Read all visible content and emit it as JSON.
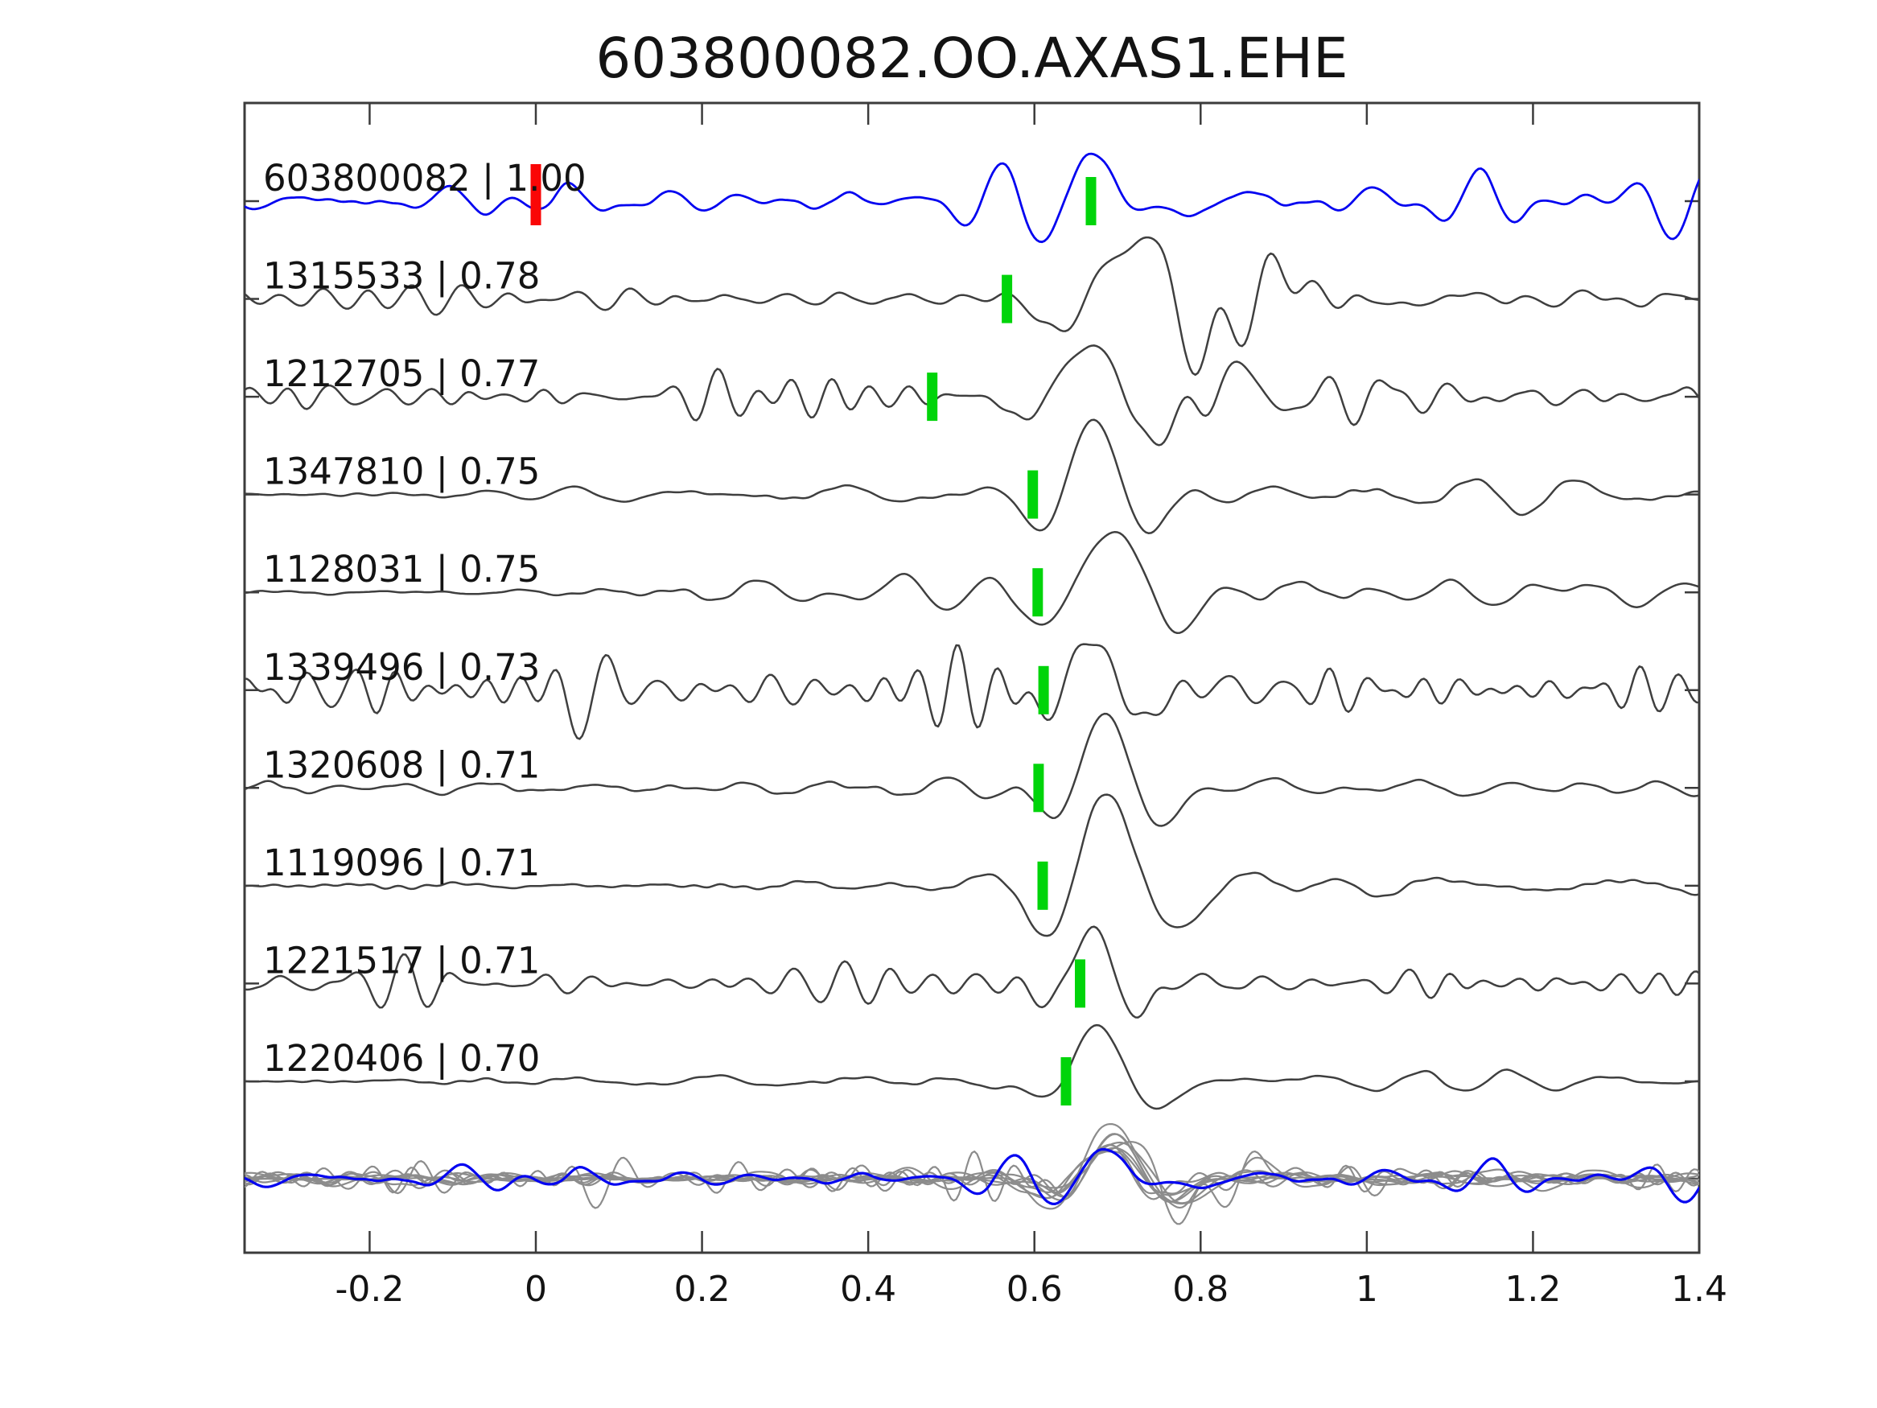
{
  "title": "603800082.OO.AXAS1.EHE",
  "colors": {
    "background": "#ffffff",
    "template_trace": "#0404f0",
    "detection_trace": "#3f3f3f",
    "overlay_gray": "#8c8c8c",
    "pick_green": "#00d40a",
    "pick_red": "#fa0606",
    "axis": "#3b3b3b",
    "text": "#131313"
  },
  "axis": {
    "xmin": -0.3505,
    "xmax": 1.4,
    "ticks": [
      {
        "value": -0.2,
        "label": "-0.2"
      },
      {
        "value": 0,
        "label": "0"
      },
      {
        "value": 0.2,
        "label": "0.2"
      },
      {
        "value": 0.4,
        "label": "0.4"
      },
      {
        "value": 0.6,
        "label": "0.6"
      },
      {
        "value": 0.8,
        "label": "0.8"
      },
      {
        "value": 1,
        "label": "1"
      },
      {
        "value": 1.2,
        "label": "1.2"
      },
      {
        "value": 1.4,
        "label": "1.4"
      }
    ]
  },
  "chart_data": {
    "type": "line",
    "title": "603800082.OO.AXAS1.EHE",
    "x_range": [
      -0.35,
      1.4
    ],
    "x_ticks": [
      "-0.2",
      "0",
      "0.2",
      "0.4",
      "0.6",
      "0.8",
      "1",
      "1.2",
      "1.4"
    ],
    "legend": "none",
    "grid": false,
    "traces": [
      {
        "id": "603800082",
        "correlation": "1.00",
        "label": "603800082 | 1.00",
        "role": "template",
        "color_key": "template_trace",
        "picks": [
          {
            "time": 0.0,
            "color_key": "pick_red",
            "tall": true
          },
          {
            "time": 0.668,
            "color_key": "pick_green",
            "tall": false
          }
        ],
        "synth": {
          "seed": 101,
          "noise": {
            "amp": 24,
            "f": [
              6,
              16
            ]
          },
          "pre": {
            "until": 0.0,
            "factor": 0.5,
            "width": 0.05
          },
          "event": {
            "t": 0.665,
            "amp": 60,
            "f": 6.5,
            "sigL": 0.04,
            "sigR": 0.07,
            "phi": -0.4
          },
          "coda": {
            "amp": 24,
            "tau": 0.55,
            "f": [
              5,
              13
            ]
          }
        }
      },
      {
        "id": "1315533",
        "correlation": "0.78",
        "label": "1315533 | 0.78",
        "role": "detection",
        "color_key": "detection_trace",
        "picks": [
          {
            "time": 0.567,
            "color_key": "pick_green",
            "tall": false
          }
        ],
        "synth": {
          "seed": 202,
          "noise": {
            "amp": 18,
            "f": [
              9,
              20
            ]
          },
          "event": {
            "t": 0.7,
            "amp": 78,
            "f": 5,
            "sigL": 0.06,
            "sigR": 0.15,
            "phi": -0.5
          },
          "coda": {
            "amp": 20,
            "tau": 0.6,
            "f": [
              6,
              14
            ]
          }
        }
      },
      {
        "id": "1212705",
        "correlation": "0.77",
        "label": "1212705 | 0.77",
        "role": "detection",
        "color_key": "detection_trace",
        "picks": [
          {
            "time": 0.477,
            "color_key": "pick_green",
            "tall": false
          }
        ],
        "synth": {
          "seed": 303,
          "noise": {
            "amp": 21,
            "f": [
              11,
              24
            ]
          },
          "event": {
            "t": 0.655,
            "amp": 68,
            "f": 5.5,
            "sigL": 0.05,
            "sigR": 0.13,
            "phi": -0.3
          },
          "coda": {
            "amp": 22,
            "tau": 0.7,
            "f": [
              8,
              18
            ]
          }
        }
      },
      {
        "id": "1347810",
        "correlation": "0.75",
        "label": "1347810 | 0.75",
        "role": "detection",
        "color_key": "detection_trace",
        "picks": [
          {
            "time": 0.598,
            "color_key": "pick_green",
            "tall": false
          }
        ],
        "synth": {
          "seed": 404,
          "noise": {
            "amp": 13,
            "f": [
              5,
              11
            ]
          },
          "pre": {
            "until": 0.0,
            "factor": 0.14,
            "width": 0.05
          },
          "event": {
            "t": 0.655,
            "amp": 80,
            "f": 6,
            "sigL": 0.045,
            "sigR": 0.085,
            "phi": -0.55
          },
          "coda": {
            "amp": 15,
            "tau": 0.5,
            "f": [
              4,
              9
            ]
          }
        }
      },
      {
        "id": "1128031",
        "correlation": "0.75",
        "label": "1128031 | 0.75",
        "role": "detection",
        "color_key": "detection_trace",
        "picks": [
          {
            "time": 0.604,
            "color_key": "pick_green",
            "tall": false
          }
        ],
        "synth": {
          "seed": 505,
          "noise": {
            "amp": 15,
            "f": [
              5,
              11
            ]
          },
          "pre": {
            "until": 0.0,
            "factor": 0.12,
            "width": 0.05
          },
          "event": {
            "t": 0.675,
            "amp": 84,
            "f": 5.5,
            "sigL": 0.05,
            "sigR": 0.09,
            "phi": -0.6
          },
          "coda": {
            "amp": 17,
            "tau": 0.55,
            "f": [
              4,
              9
            ]
          }
        }
      },
      {
        "id": "1339496",
        "correlation": "0.73",
        "label": "1339496 | 0.73",
        "role": "detection",
        "color_key": "detection_trace",
        "picks": [
          {
            "time": 0.611,
            "color_key": "pick_green",
            "tall": false
          }
        ],
        "synth": {
          "seed": 606,
          "noise": {
            "amp": 23,
            "f": [
              13,
              28
            ]
          },
          "event": {
            "t": 0.66,
            "amp": 64,
            "f": 7,
            "sigL": 0.04,
            "sigR": 0.07,
            "phi": -0.4
          },
          "event2": {
            "t": 0.055,
            "amp": 52,
            "f": 13,
            "sigL": 0.022,
            "sigR": 0.03,
            "phi": -2.8
          },
          "coda": {
            "amp": 20,
            "tau": 0.6,
            "f": [
              10,
              22
            ]
          }
        }
      },
      {
        "id": "1320608",
        "correlation": "0.71",
        "label": "1320608 | 0.71",
        "role": "detection",
        "color_key": "detection_trace",
        "picks": [
          {
            "time": 0.605,
            "color_key": "pick_green",
            "tall": false
          }
        ],
        "synth": {
          "seed": 707,
          "noise": {
            "amp": 12,
            "f": [
              6,
              13
            ]
          },
          "pre": {
            "until": 0.3,
            "factor": 0.5,
            "width": 0.18
          },
          "event": {
            "t": 0.668,
            "amp": 82,
            "f": 6,
            "sigL": 0.045,
            "sigR": 0.085,
            "phi": -0.55
          },
          "coda": {
            "amp": 14,
            "tau": 0.5,
            "f": [
              4,
              10
            ]
          }
        }
      },
      {
        "id": "1119096",
        "correlation": "0.71",
        "label": "1119096 | 0.71",
        "role": "detection",
        "color_key": "detection_trace",
        "picks": [
          {
            "time": 0.61,
            "color_key": "pick_green",
            "tall": false
          }
        ],
        "synth": {
          "seed": 808,
          "noise": {
            "amp": 14,
            "f": [
              5,
              11
            ]
          },
          "pre": {
            "until": 0.0,
            "factor": 0.13,
            "width": 0.05
          },
          "event": {
            "t": 0.675,
            "amp": 86,
            "f": 5,
            "sigL": 0.05,
            "sigR": 0.095,
            "phi": -0.65
          },
          "coda": {
            "amp": 16,
            "tau": 0.55,
            "f": [
              4,
              9
            ]
          }
        }
      },
      {
        "id": "1221517",
        "correlation": "0.71",
        "label": "1221517 | 0.71",
        "role": "detection",
        "color_key": "detection_trace",
        "picks": [
          {
            "time": 0.655,
            "color_key": "pick_green",
            "tall": false
          }
        ],
        "synth": {
          "seed": 909,
          "noise": {
            "amp": 15,
            "f": [
              12,
              24
            ]
          },
          "event": {
            "t": 0.66,
            "amp": 68,
            "f": 7.5,
            "sigL": 0.035,
            "sigR": 0.06,
            "phi": -0.35
          },
          "coda": {
            "amp": 15,
            "tau": 0.55,
            "f": [
              9,
              18
            ]
          }
        }
      },
      {
        "id": "1220406",
        "correlation": "0.70",
        "label": "1220406 | 0.70",
        "role": "detection",
        "color_key": "detection_trace",
        "picks": [
          {
            "time": 0.638,
            "color_key": "pick_green",
            "tall": false
          }
        ],
        "synth": {
          "seed": 1010,
          "noise": {
            "amp": 10,
            "f": [
              5,
              11
            ]
          },
          "pre": {
            "until": 0.06,
            "factor": 0.2,
            "width": 0.07
          },
          "event": {
            "t": 0.665,
            "amp": 74,
            "f": 6,
            "sigL": 0.045,
            "sigR": 0.08,
            "phi": -0.5
          },
          "coda": {
            "amp": 12,
            "tau": 0.5,
            "f": [
              4,
              9
            ]
          }
        }
      }
    ],
    "overlay": {
      "align_time": 0.68,
      "scale": 0.6,
      "template_scale": 0.62,
      "env_floor": 0.85
    }
  }
}
